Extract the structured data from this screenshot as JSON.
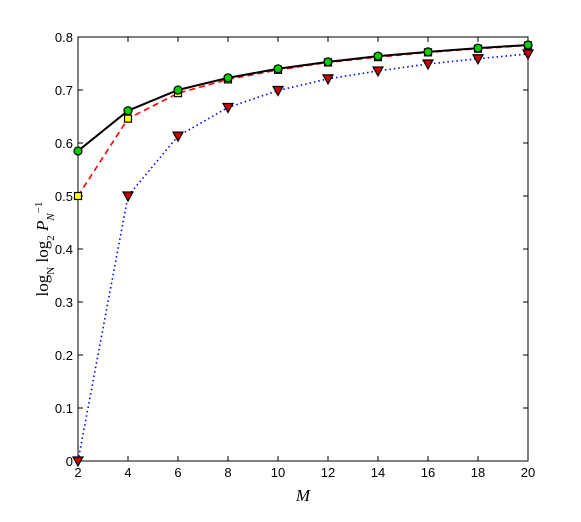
{
  "chart_data": {
    "type": "line",
    "xlabel": "M",
    "ylabel_parts": [
      "log",
      "N",
      " log",
      "2",
      " P",
      "N",
      "−1"
    ],
    "x": [
      2,
      4,
      6,
      8,
      10,
      12,
      14,
      16,
      18,
      20
    ],
    "xlim": [
      2,
      20
    ],
    "xticks": [
      2,
      4,
      6,
      8,
      10,
      12,
      14,
      16,
      18,
      20
    ],
    "ylim": [
      0,
      0.8
    ],
    "yticks": [
      0,
      0.1,
      0.2,
      0.3,
      0.4,
      0.5,
      0.6,
      0.7,
      0.8
    ],
    "series": [
      {
        "color": "#0000ff",
        "dash": "dotted",
        "marker": "triangle-down",
        "marker_color": "#cc0000",
        "values": [
          0,
          0.5,
          0.613,
          0.667,
          0.699,
          0.721,
          0.736,
          0.749,
          0.759,
          0.768
        ]
      },
      {
        "color": "#ff0000",
        "dash": "dashed",
        "marker": "square",
        "marker_color": "#ffff00",
        "values": [
          0.5,
          0.646,
          0.694,
          0.72,
          0.738,
          0.752,
          0.762,
          0.771,
          0.778,
          0.784
        ]
      },
      {
        "color": "#000000",
        "dash": "solid",
        "marker": "circle",
        "marker_color": "#00cc00",
        "values": [
          0.585,
          0.661,
          0.7,
          0.723,
          0.74,
          0.753,
          0.764,
          0.772,
          0.779,
          0.785
        ]
      }
    ]
  }
}
